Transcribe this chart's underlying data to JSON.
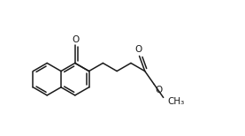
{
  "bg_color": "#ffffff",
  "line_color": "#1a1a1a",
  "lw": 1.1,
  "fs": 7.5,
  "figsize": [
    2.77,
    1.54
  ],
  "dpi": 100,
  "BL": 18.0,
  "xlim": [
    5,
    277
  ],
  "ylim": [
    5,
    154
  ]
}
